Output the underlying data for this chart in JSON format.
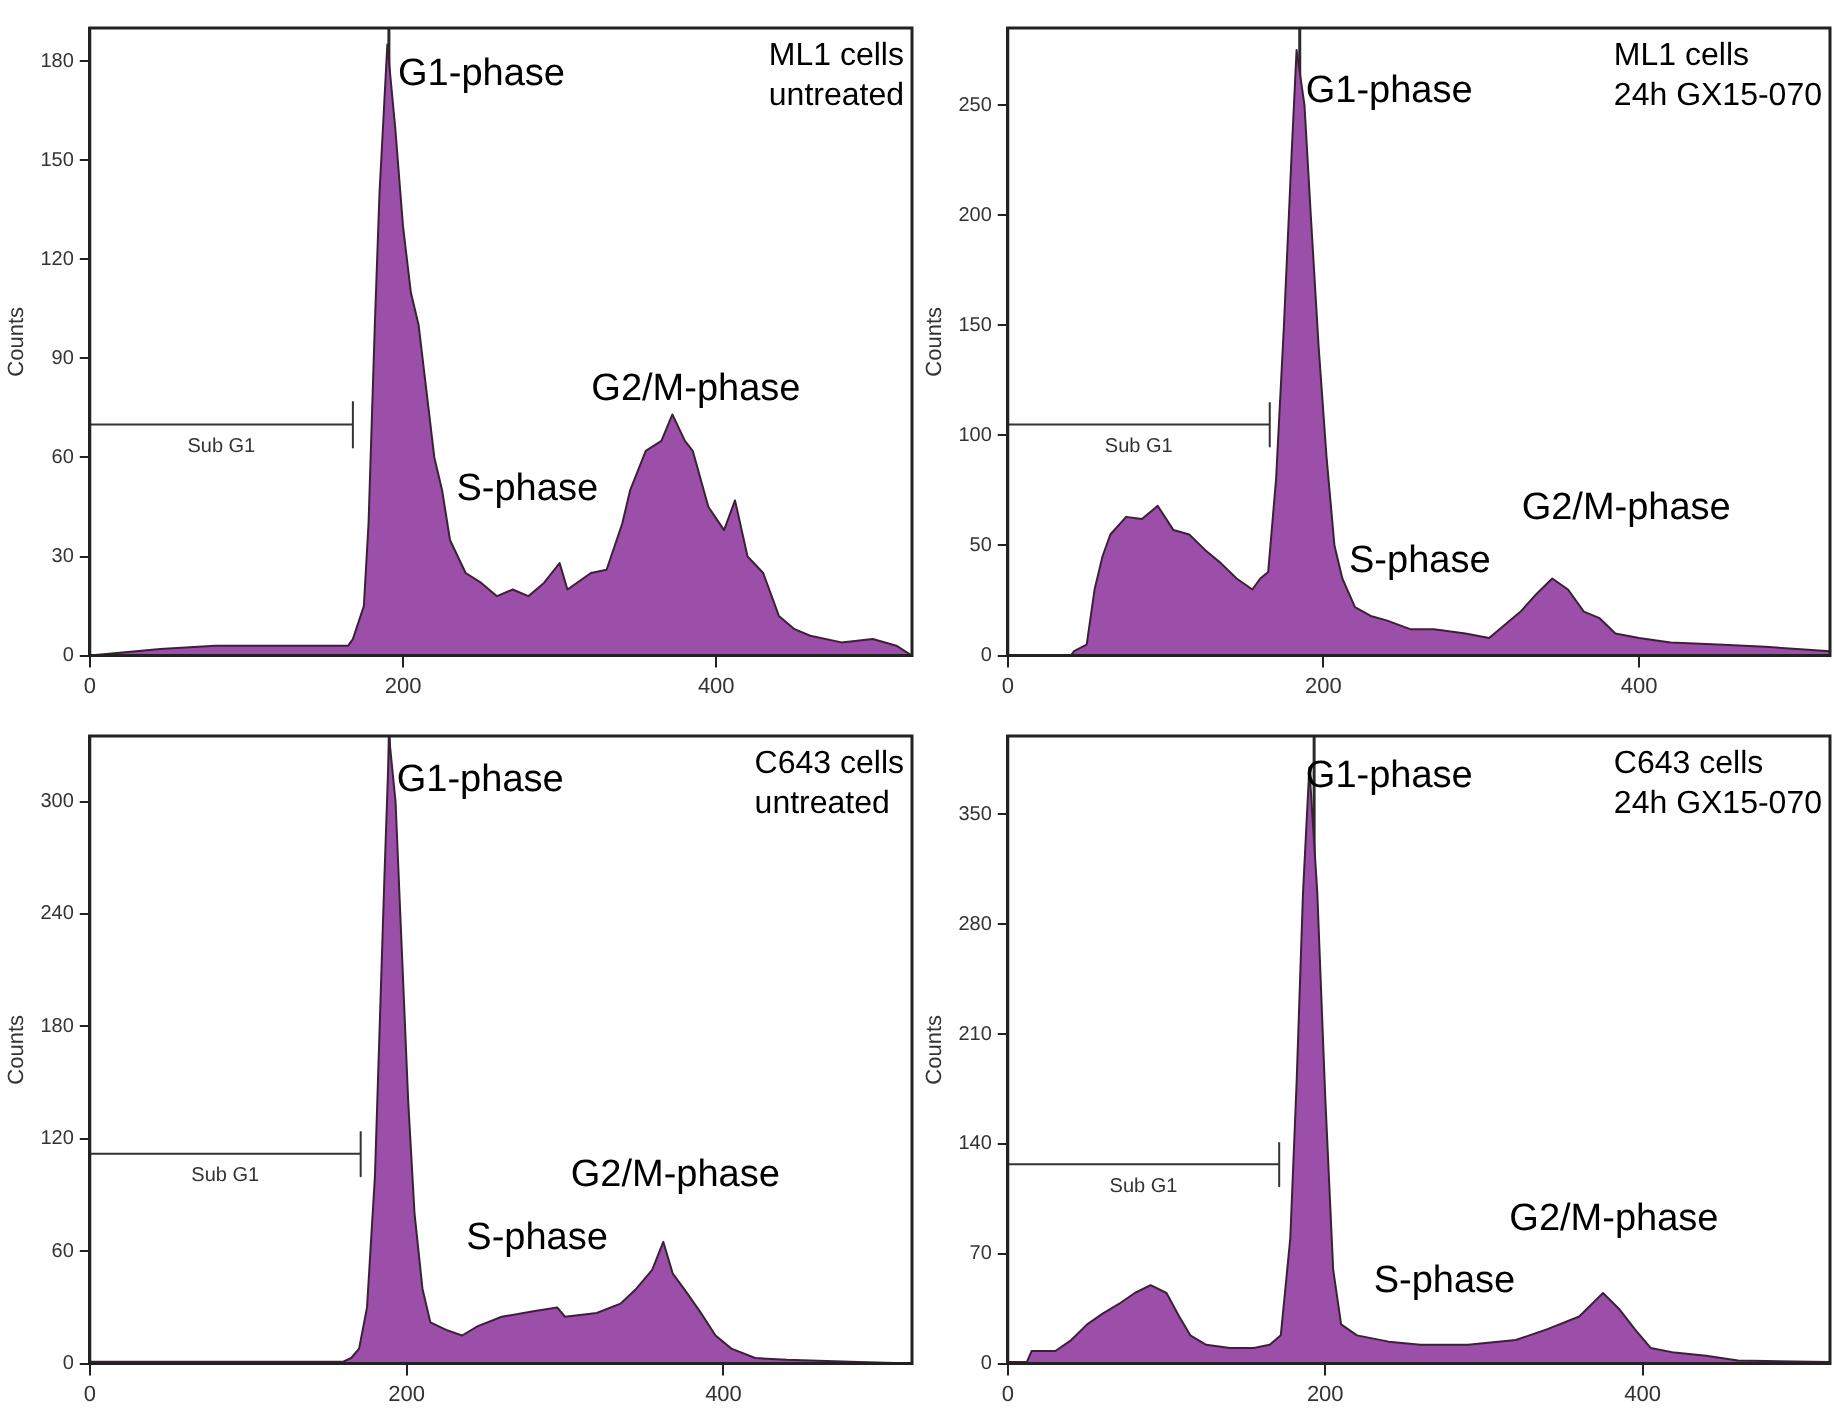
{
  "chart_data": [
    {
      "type": "area",
      "title": "ML1 cells",
      "subtitle": "untreated",
      "ylabel": "Counts",
      "xlim": [
        0,
        525
      ],
      "xticks": [
        0,
        200,
        400
      ],
      "ylim": [
        0,
        190
      ],
      "yticks": [
        0,
        30,
        60,
        90,
        120,
        150,
        180
      ],
      "grid": false,
      "legend": false,
      "marker": "none",
      "ref_lines": [
        {
          "axis": "x",
          "value": 191,
          "color": "#2a2a2a"
        }
      ],
      "annotations": [
        {
          "text": "G1-phase",
          "x": 193,
          "y": 176
        },
        "S-phase",
        "G2/M-phase"
      ],
      "series": [
        {
          "color": "#9b4fa8",
          "x": [
            0,
            45,
            80,
            100,
            130,
            165,
            168,
            175,
            178,
            182,
            185,
            190,
            195,
            200,
            205,
            210,
            215,
            220,
            225,
            230,
            240,
            250,
            260,
            270,
            280,
            290,
            300,
            305,
            320,
            330,
            340,
            345,
            355,
            365,
            372,
            380,
            385,
            395,
            405,
            412,
            420,
            430,
            440,
            450,
            460,
            480,
            500,
            515,
            525
          ],
          "values": [
            0,
            2,
            3,
            3,
            3,
            3,
            5,
            15,
            40,
            100,
            140,
            185,
            160,
            130,
            110,
            100,
            80,
            60,
            50,
            35,
            25,
            22,
            18,
            20,
            18,
            22,
            28,
            20,
            25,
            26,
            40,
            50,
            62,
            65,
            73,
            65,
            62,
            45,
            38,
            47,
            30,
            25,
            12,
            8,
            6,
            4,
            5,
            3,
            0
          ]
        },
        {
          "type": "line",
          "name": "Sub G1",
          "color": "#333333",
          "x": [
            0,
            168,
            168,
            168
          ],
          "values": [
            70,
            70,
            63,
            77
          ]
        }
      ]
    },
    {
      "type": "area",
      "title": "ML1 cells",
      "subtitle": "24h GX15-070",
      "ylabel": "Counts",
      "xlim": [
        0,
        521
      ],
      "xticks": [
        0,
        200,
        400
      ],
      "ylim": [
        0,
        285
      ],
      "yticks": [
        0,
        50,
        100,
        150,
        200,
        250
      ],
      "grid": false,
      "legend": false,
      "marker": "none",
      "ref_lines": [
        {
          "axis": "x",
          "value": 185,
          "color": "#2a2a2a"
        }
      ],
      "annotations": [
        {
          "text": "G1-phase",
          "x": 185,
          "y": 256
        },
        "S-phase",
        "G2/M-phase"
      ],
      "series": [
        {
          "color": "#9b4fa8",
          "x": [
            0,
            40,
            42,
            50,
            55,
            60,
            65,
            75,
            85,
            95,
            105,
            115,
            125,
            135,
            145,
            155,
            160,
            165,
            170,
            175,
            180,
            183,
            188,
            192,
            197,
            202,
            207,
            212,
            220,
            230,
            240,
            255,
            270,
            290,
            305,
            315,
            325,
            335,
            345,
            355,
            365,
            375,
            385,
            400,
            420,
            450,
            480,
            500,
            521
          ],
          "values": [
            0,
            0,
            2,
            5,
            30,
            45,
            55,
            63,
            62,
            68,
            57,
            55,
            48,
            42,
            35,
            30,
            35,
            38,
            80,
            150,
            230,
            275,
            250,
            200,
            140,
            90,
            50,
            35,
            22,
            18,
            16,
            12,
            12,
            10,
            8,
            14,
            20,
            28,
            35,
            30,
            20,
            17,
            10,
            8,
            6,
            5,
            4,
            3,
            2
          ]
        },
        {
          "type": "line",
          "name": "Sub G1",
          "color": "#333333",
          "x": [
            0,
            166,
            166,
            166
          ],
          "values": [
            105,
            105,
            95,
            115
          ]
        }
      ]
    },
    {
      "type": "area",
      "title": "C643 cells",
      "subtitle": "untreated",
      "ylabel": "Counts",
      "xlim": [
        0,
        519
      ],
      "xticks": [
        0,
        200,
        400
      ],
      "ylim": [
        0,
        335
      ],
      "yticks": [
        0,
        60,
        120,
        180,
        240,
        300
      ],
      "grid": false,
      "legend": false,
      "marker": "none",
      "ref_lines": [
        {
          "axis": "x",
          "value": 189,
          "color": "#2a2a2a"
        }
      ],
      "annotations": [
        {
          "text": "G1-phase",
          "x": 190,
          "y": 311
        },
        "S-phase",
        "G2/M-phase"
      ],
      "series": [
        {
          "color": "#9b4fa8",
          "x": [
            0,
            160,
            165,
            170,
            175,
            180,
            183,
            186,
            189,
            193,
            197,
            201,
            205,
            210,
            215,
            225,
            235,
            245,
            260,
            280,
            295,
            300,
            320,
            335,
            345,
            355,
            362,
            368,
            375,
            385,
            395,
            405,
            420,
            440,
            480,
            519
          ],
          "values": [
            1,
            1,
            3,
            8,
            30,
            100,
            180,
            260,
            334,
            300,
            220,
            140,
            80,
            40,
            22,
            18,
            15,
            20,
            25,
            28,
            30,
            25,
            27,
            32,
            40,
            50,
            65,
            48,
            40,
            28,
            15,
            8,
            3,
            2,
            1,
            0
          ]
        },
        {
          "type": "line",
          "name": "Sub G1",
          "color": "#333333",
          "x": [
            0,
            171,
            171,
            171
          ],
          "values": [
            112,
            112,
            100,
            124
          ]
        }
      ]
    },
    {
      "type": "area",
      "title": "C643 cells",
      "subtitle": "24h GX15-070",
      "ylabel": "Counts",
      "xlim": [
        0,
        518
      ],
      "xticks": [
        0,
        200,
        400
      ],
      "ylim": [
        0,
        400
      ],
      "yticks": [
        0,
        70,
        140,
        210,
        280,
        350
      ],
      "grid": false,
      "legend": false,
      "marker": "none",
      "ref_lines": [
        {
          "axis": "x",
          "value": 193,
          "color": "#2a2a2a"
        }
      ],
      "annotations": [
        {
          "text": "G1-phase",
          "x": 184,
          "y": 374
        },
        "S-phase",
        "G2/M-phase"
      ],
      "series": [
        {
          "color": "#9b4fa8",
          "x": [
            0,
            12,
            15,
            30,
            40,
            50,
            60,
            70,
            80,
            90,
            100,
            108,
            115,
            125,
            140,
            155,
            165,
            172,
            178,
            182,
            186,
            190,
            195,
            200,
            205,
            210,
            220,
            240,
            260,
            290,
            320,
            340,
            360,
            375,
            385,
            395,
            405,
            420,
            440,
            460,
            518
          ],
          "values": [
            1,
            1,
            8,
            8,
            15,
            25,
            32,
            38,
            45,
            50,
            45,
            30,
            18,
            12,
            10,
            10,
            12,
            18,
            80,
            180,
            300,
            380,
            300,
            170,
            60,
            25,
            18,
            14,
            12,
            12,
            15,
            22,
            30,
            45,
            35,
            22,
            10,
            7,
            5,
            2,
            1
          ]
        },
        {
          "type": "line",
          "name": "Sub G1",
          "color": "#333333",
          "x": [
            0,
            171,
            171,
            171
          ],
          "values": [
            127,
            127,
            113,
            141
          ]
        }
      ]
    }
  ]
}
